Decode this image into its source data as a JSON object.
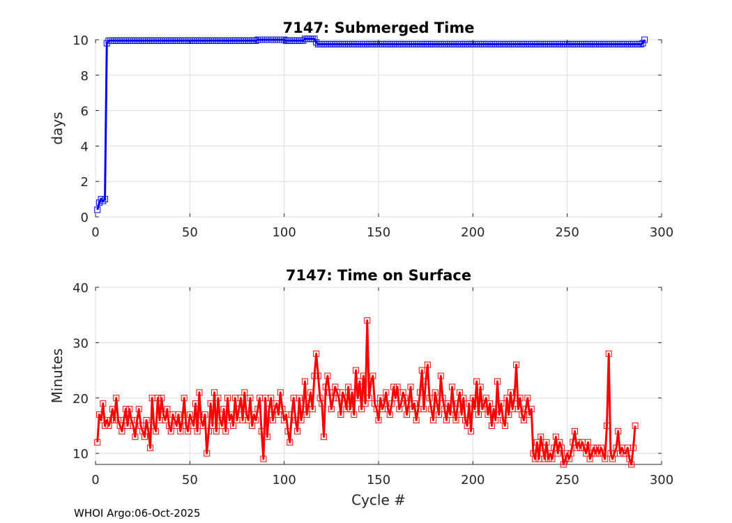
{
  "footer": "WHOI Argo:06-Oct-2025",
  "chart_data": [
    {
      "type": "line",
      "title": "7147: Submerged Time",
      "xlabel": "",
      "ylabel": "days",
      "xlim": [
        0,
        300
      ],
      "ylim": [
        0,
        10
      ],
      "xticks": [
        0,
        50,
        100,
        150,
        200,
        250,
        300
      ],
      "yticks": [
        0,
        2,
        4,
        6,
        8,
        10
      ],
      "grid": true,
      "marker": "square",
      "color": "#0000ff",
      "series": [
        {
          "segments": [
            {
              "x_from": 1,
              "x_to": 1,
              "value": 0.4
            },
            {
              "x_from": 2,
              "x_to": 2,
              "value": 0.8
            },
            {
              "x_from": 3,
              "x_to": 3,
              "value": 1.0
            },
            {
              "x_from": 4,
              "x_to": 4,
              "value": 0.9
            },
            {
              "x_from": 5,
              "x_to": 5,
              "value": 1.0
            },
            {
              "x_from": 6,
              "x_to": 6,
              "value": 9.8
            },
            {
              "x_from": 7,
              "x_to": 85,
              "value": 9.95
            },
            {
              "x_from": 86,
              "x_to": 100,
              "value": 10.0
            },
            {
              "x_from": 101,
              "x_to": 110,
              "value": 9.95
            },
            {
              "x_from": 111,
              "x_to": 116,
              "value": 10.05
            },
            {
              "x_from": 117,
              "x_to": 117,
              "value": 9.85
            },
            {
              "x_from": 118,
              "x_to": 288,
              "value": 9.75
            },
            {
              "x_from": 289,
              "x_to": 289,
              "value": 9.75
            },
            {
              "x_from": 290,
              "x_to": 290,
              "value": 9.8
            },
            {
              "x_from": 291,
              "x_to": 291,
              "value": 10.0
            }
          ]
        }
      ]
    },
    {
      "type": "line",
      "title": "7147: Time on Surface",
      "xlabel": "Cycle #",
      "ylabel": "Minutes",
      "xlim": [
        0,
        300
      ],
      "ylim": [
        8,
        40
      ],
      "xticks": [
        0,
        50,
        100,
        150,
        200,
        250,
        300
      ],
      "yticks": [
        10,
        20,
        30,
        40
      ],
      "grid": true,
      "marker": "square",
      "color": "#ff0000",
      "series": [
        {
          "x_start": 1,
          "values": [
            12,
            17,
            16,
            19,
            15,
            16,
            15,
            16,
            18,
            16,
            20,
            16,
            15,
            14,
            16,
            18,
            15,
            18,
            16,
            15,
            13,
            16,
            18,
            15,
            14,
            13,
            16,
            14,
            11,
            20,
            15,
            14,
            20,
            16,
            20,
            17,
            16,
            18,
            15,
            14,
            17,
            16,
            15,
            17,
            14,
            16,
            20,
            15,
            14,
            17,
            16,
            15,
            19,
            14,
            21,
            16,
            15,
            17,
            10,
            14,
            19,
            15,
            21,
            14,
            20,
            16,
            15,
            18,
            14,
            20,
            16,
            17,
            15,
            20,
            16,
            18,
            20,
            16,
            21,
            17,
            16,
            20,
            15,
            17,
            16,
            18,
            20,
            14,
            9,
            20,
            13,
            18,
            20,
            16,
            18,
            19,
            17,
            21,
            18,
            16,
            17,
            14,
            12,
            17,
            20,
            16,
            14,
            20,
            16,
            18,
            23,
            17,
            19,
            21,
            18,
            24,
            28,
            24,
            20,
            19,
            13,
            22,
            24,
            21,
            18,
            20,
            22,
            21,
            20,
            17,
            21,
            20,
            18,
            22,
            18,
            21,
            17,
            25,
            20,
            23,
            18,
            24,
            19,
            34,
            20,
            23,
            24,
            19,
            18,
            16,
            20,
            18,
            19,
            21,
            18,
            17,
            19,
            22,
            20,
            22,
            18,
            19,
            21,
            20,
            17,
            19,
            22,
            18,
            19,
            16,
            18,
            21,
            25,
            18,
            23,
            26,
            20,
            18,
            16,
            21,
            19,
            17,
            24,
            20,
            18,
            16,
            19,
            17,
            22,
            18,
            16,
            19,
            21,
            17,
            20,
            16,
            15,
            19,
            14,
            20,
            18,
            23,
            17,
            22,
            18,
            19,
            20,
            17,
            19,
            15,
            18,
            16,
            23,
            17,
            19,
            16,
            15,
            20,
            17,
            21,
            18,
            20,
            26,
            18,
            20,
            17,
            16,
            18,
            20,
            17,
            18,
            10,
            9,
            12,
            9,
            13,
            11,
            9,
            12,
            9,
            10,
            9,
            11,
            13,
            10,
            12,
            11,
            8,
            9,
            10,
            9,
            10,
            12,
            14,
            11,
            12,
            11,
            12,
            11,
            10,
            12,
            9,
            10,
            11,
            10,
            11,
            10,
            11,
            10,
            9,
            15,
            28,
            10,
            9,
            10,
            11,
            14,
            10,
            11,
            10,
            10,
            11,
            9,
            8,
            11,
            15
          ]
        }
      ]
    }
  ]
}
